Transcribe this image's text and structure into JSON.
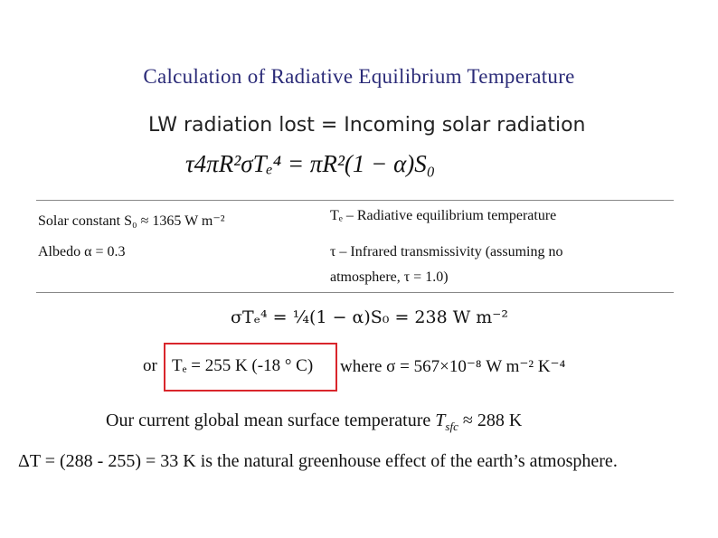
{
  "title": "Calculation of Radiative Equilibrium Temperature",
  "heading": "LW radiation lost = Incoming solar radiation",
  "equation1": "τ4πR²σTₑ⁴ = πR²(1 − α)S₀",
  "table": {
    "rows": [
      [
        "Solar constant S₀ ≈ 1365 W m⁻²",
        "Tₑ – Radiative equilibrium temperature"
      ],
      [
        "Albedo α = 0.3",
        "τ – Infrared transmissivity (assuming no",
        "atmosphere, τ = 1.0)"
      ]
    ]
  },
  "equation2": "σTₑ⁴ = ¼(1 − α)S₀ = 238 W m⁻²",
  "result": {
    "prefix": "or",
    "boxed": "Tₑ = 255 K (-18 ° C)",
    "suffix": "where σ = 567×10⁻⁸ W m⁻² K⁻⁴"
  },
  "surface": {
    "text": "Our current global mean surface temperature",
    "symbol": "T",
    "subscript": "sfc",
    "value": "≈ 288 K"
  },
  "conclusion": "ΔT = (288 - 255) = 33 K is the natural greenhouse effect of the earth’s atmosphere."
}
